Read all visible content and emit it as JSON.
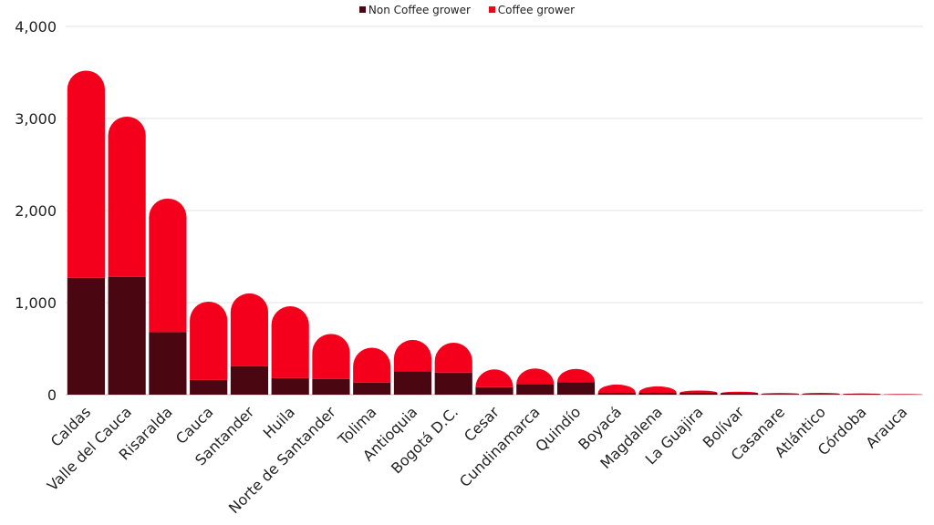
{
  "chart_data": {
    "type": "bar",
    "stacked": true,
    "title": "",
    "xlabel": "",
    "ylabel": "",
    "ylim": [
      0,
      4000
    ],
    "y_ticks": [
      "0",
      "1,000",
      "2,000",
      "3,000",
      "4,000"
    ],
    "grid": true,
    "legend_position": "top-center",
    "categories": [
      "Caldas",
      "Valle del Cauca",
      "Risaralda",
      "Cauca",
      "Santander",
      "Huila",
      "Norte de Santander",
      "Tolima",
      "Antioquia",
      "Bogotá D.C.",
      "Cesar",
      "Cundinamarca",
      "Quindío",
      "Boyacá",
      "Magdalena",
      "La Guajira",
      "Bolívar",
      "Casanare",
      "Atlántico",
      "Córdoba",
      "Arauca"
    ],
    "series": [
      {
        "name": "Non Coffee grower",
        "color": "#4a0711",
        "values": [
          1270,
          1280,
          680,
          160,
          310,
          180,
          170,
          130,
          255,
          240,
          80,
          115,
          135,
          20,
          20,
          20,
          15,
          8,
          8,
          5,
          3
        ]
      },
      {
        "name": "Coffee grower",
        "color": "#f5001c",
        "values": [
          2250,
          1740,
          1450,
          850,
          790,
          780,
          490,
          380,
          340,
          325,
          195,
          170,
          145,
          90,
          70,
          25,
          17,
          10,
          12,
          8,
          5
        ]
      }
    ]
  }
}
